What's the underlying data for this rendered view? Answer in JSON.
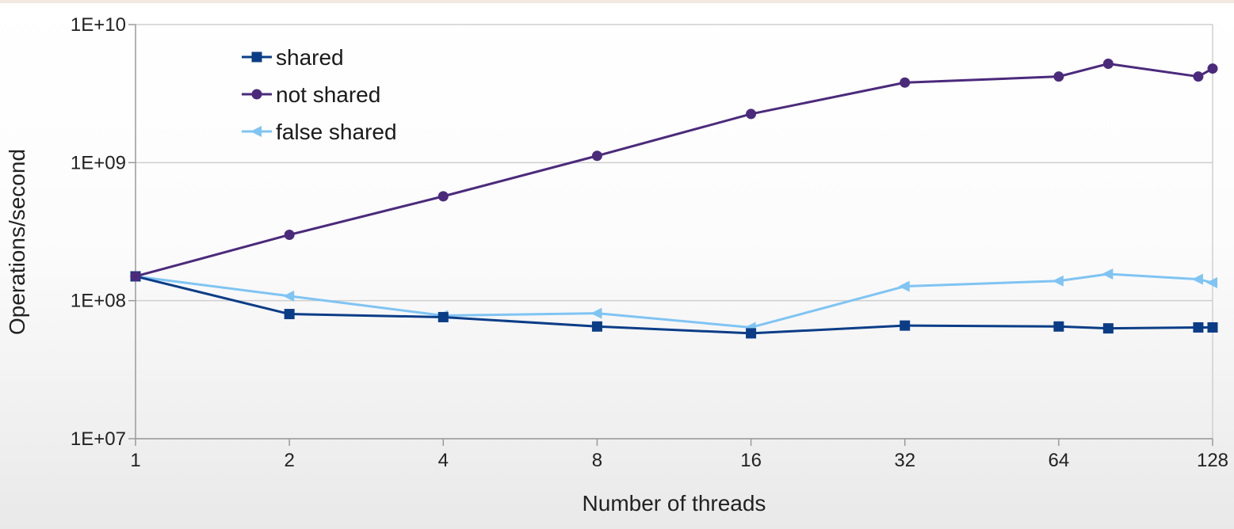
{
  "chart_data": {
    "type": "line",
    "xscale": "log2",
    "yscale": "log10",
    "xlabel": "Number of threads",
    "ylabel": "Operations/second",
    "xlim": [
      1,
      128
    ],
    "ylim": [
      10000000,
      10000000000
    ],
    "x_ticks": [
      1,
      2,
      4,
      8,
      16,
      32,
      64,
      128
    ],
    "x_tick_labels": [
      "1",
      "2",
      "4",
      "8",
      "16",
      "32",
      "64",
      "128"
    ],
    "y_ticks": [
      10000000,
      100000000,
      1000000000,
      10000000000
    ],
    "y_tick_labels": [
      "1E+07",
      "1E+08",
      "1E+09",
      "1E+10"
    ],
    "grid": "horizontal",
    "legend_position": "top-left",
    "series": [
      {
        "name": "shared",
        "color": "#0b3d87",
        "marker": "square",
        "x": [
          1,
          2,
          4,
          8,
          16,
          32,
          64,
          80,
          120,
          128
        ],
        "y": [
          150000000,
          80000000,
          76000000,
          65000000,
          58000000,
          66000000,
          65000000,
          63000000,
          64000000,
          64000000
        ]
      },
      {
        "name": "not shared",
        "color": "#4b2a7b",
        "marker": "circle",
        "x": [
          1,
          2,
          4,
          8,
          16,
          32,
          64,
          80,
          120,
          128
        ],
        "y": [
          150000000,
          300000000,
          570000000,
          1120000000,
          2250000000,
          3800000000,
          4200000000,
          5200000000,
          4200000000,
          4800000000
        ]
      },
      {
        "name": "false shared",
        "color": "#7fc4f3",
        "marker": "triangle-left",
        "x": [
          1,
          2,
          4,
          8,
          16,
          32,
          64,
          80,
          120,
          128
        ],
        "y": [
          150000000,
          108000000,
          78000000,
          81000000,
          64000000,
          127000000,
          139000000,
          156000000,
          143000000,
          135000000
        ]
      }
    ]
  }
}
